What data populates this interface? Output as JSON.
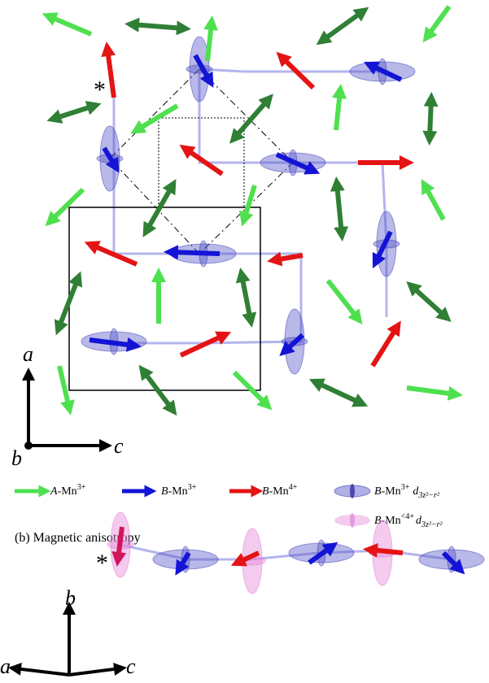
{
  "panel_a": {
    "axis_a": "a",
    "axis_b": "b",
    "axis_c": "c",
    "marker": "*"
  },
  "legend": [
    {
      "italic": "A",
      "text": "-Mn",
      "sup": "3+"
    },
    {
      "italic": "B",
      "text": "-Mn",
      "sup": "3+"
    },
    {
      "italic": "B",
      "text": "-Mn",
      "sup": "4+"
    },
    {
      "italic": "B",
      "text": "-Mn",
      "sup": "3+",
      "orbital": "d",
      "orbital_sub": "3z²−r²"
    },
    {
      "italic": "B",
      "text": "-Mn",
      "sup": "<4+",
      "orbital": "d",
      "orbital_sub": "3z²−r²"
    }
  ],
  "panel_b": {
    "title": "(b) Magnetic anisotropy",
    "axis_b": "b",
    "axis_a": "a",
    "axis_c": "c",
    "marker": "*"
  }
}
